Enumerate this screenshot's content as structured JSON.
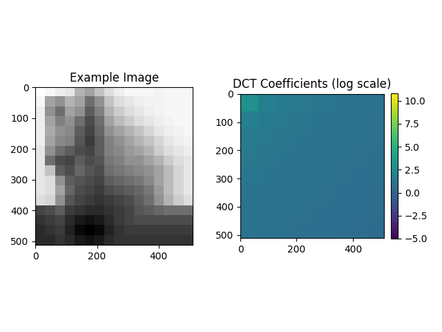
{
  "chart_data": [
    {
      "type": "image",
      "title": "Example Image",
      "xlim": [
        -0.5,
        511.5
      ],
      "ylim": [
        511.5,
        -0.5
      ],
      "xticks": [
        0,
        200,
        400
      ],
      "yticks": [
        0,
        100,
        200,
        300,
        400,
        500
      ],
      "cells": [
        [
          205,
          200,
          195,
          190,
          160,
          150,
          170,
          185,
          195,
          200,
          200,
          200,
          198,
          200,
          200,
          200
        ],
        [
          200,
          150,
          140,
          160,
          150,
          120,
          140,
          170,
          185,
          190,
          195,
          198,
          198,
          200,
          200,
          200
        ],
        [
          195,
          140,
          120,
          150,
          140,
          110,
          130,
          160,
          175,
          185,
          190,
          195,
          198,
          200,
          200,
          200
        ],
        [
          195,
          150,
          130,
          140,
          120,
          100,
          120,
          150,
          165,
          175,
          185,
          190,
          195,
          198,
          200,
          200
        ],
        [
          195,
          155,
          140,
          135,
          110,
          95,
          115,
          140,
          150,
          160,
          170,
          180,
          190,
          195,
          198,
          200
        ],
        [
          195,
          150,
          135,
          130,
          105,
          90,
          110,
          130,
          140,
          150,
          160,
          170,
          180,
          190,
          195,
          198
        ],
        [
          190,
          140,
          120,
          110,
          100,
          95,
          110,
          130,
          135,
          145,
          150,
          160,
          175,
          185,
          190,
          195
        ],
        [
          190,
          120,
          100,
          95,
          110,
          100,
          105,
          125,
          130,
          140,
          140,
          150,
          160,
          175,
          185,
          190
        ],
        [
          190,
          170,
          110,
          100,
          115,
          105,
          100,
          120,
          125,
          130,
          135,
          140,
          150,
          165,
          180,
          190
        ],
        [
          190,
          185,
          140,
          110,
          105,
          100,
          95,
          110,
          115,
          120,
          125,
          135,
          150,
          165,
          180,
          190
        ],
        [
          190,
          185,
          150,
          115,
          100,
          95,
          90,
          100,
          105,
          110,
          115,
          125,
          145,
          165,
          180,
          190
        ],
        [
          185,
          180,
          140,
          105,
          95,
          90,
          85,
          90,
          95,
          100,
          110,
          120,
          140,
          160,
          175,
          185
        ],
        [
          95,
          100,
          110,
          90,
          85,
          80,
          80,
          85,
          90,
          95,
          105,
          110,
          115,
          120,
          120,
          120
        ],
        [
          85,
          90,
          95,
          80,
          70,
          65,
          70,
          80,
          90,
          95,
          100,
          100,
          100,
          100,
          100,
          100
        ],
        [
          80,
          85,
          90,
          75,
          60,
          55,
          60,
          75,
          85,
          90,
          90,
          90,
          90,
          90,
          90,
          90
        ],
        [
          80,
          80,
          85,
          80,
          70,
          65,
          70,
          80,
          85,
          85,
          85,
          85,
          85,
          85,
          85,
          85
        ]
      ]
    },
    {
      "type": "heatmap",
      "title": "DCT Coefficients (log scale)",
      "xlim": [
        -0.5,
        511.5
      ],
      "ylim": [
        511.5,
        -0.5
      ],
      "xticks": [
        0,
        200,
        400
      ],
      "yticks": [
        0,
        100,
        200,
        300,
        400,
        500
      ],
      "colorbar_range": [
        -5,
        10.8
      ],
      "colorbar_ticks": [
        {
          "value": -5,
          "label": "−5.0"
        },
        {
          "value": -2.5,
          "label": "−2.5"
        },
        {
          "value": 0,
          "label": "0.0"
        },
        {
          "value": 2.5,
          "label": "2.5"
        },
        {
          "value": 5,
          "label": "5.0"
        },
        {
          "value": 7.5,
          "label": "7.5"
        },
        {
          "value": 10,
          "label": "10.0"
        }
      ],
      "cells": [
        [
          3.0,
          1.8,
          1.5,
          1.3,
          1.2,
          1.1,
          1.0,
          1.0
        ],
        [
          1.8,
          1.5,
          1.3,
          1.2,
          1.1,
          1.0,
          1.0,
          0.9
        ],
        [
          1.5,
          1.3,
          1.2,
          1.1,
          1.0,
          1.0,
          0.9,
          0.9
        ],
        [
          1.3,
          1.2,
          1.1,
          1.0,
          1.0,
          0.9,
          0.9,
          0.8
        ],
        [
          1.2,
          1.1,
          1.0,
          1.0,
          0.9,
          0.9,
          0.8,
          0.8
        ],
        [
          1.1,
          1.0,
          1.0,
          0.9,
          0.9,
          0.8,
          0.8,
          0.7
        ],
        [
          1.0,
          1.0,
          0.9,
          0.9,
          0.8,
          0.8,
          0.7,
          0.7
        ],
        [
          1.0,
          0.9,
          0.9,
          0.8,
          0.8,
          0.7,
          0.7,
          0.6
        ]
      ]
    }
  ]
}
